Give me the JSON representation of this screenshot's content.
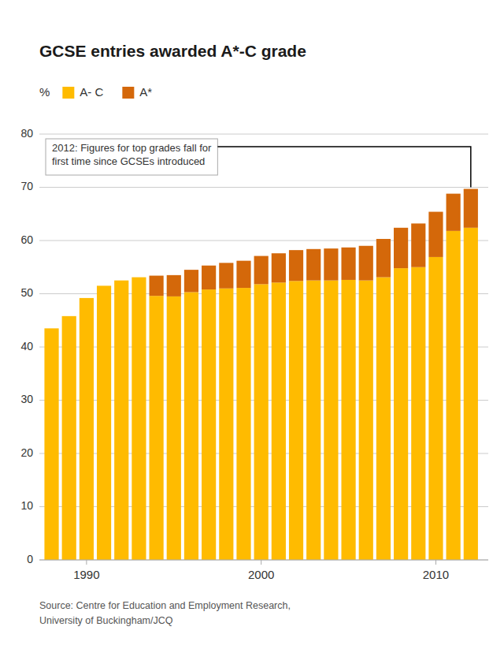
{
  "chart_data": {
    "type": "bar",
    "stacked": true,
    "title": "GCSE entries awarded A*-C grade",
    "y_label": "%",
    "annotations": [
      "2012: Figures for top grades fall for",
      "first time since GCSEs introduced"
    ],
    "source": [
      "Source: Centre for Education and Employment Research,",
      "University of Buckingham/JCQ"
    ],
    "x": [
      1988,
      1989,
      1990,
      1991,
      1992,
      1993,
      1994,
      1995,
      1996,
      1997,
      1998,
      1999,
      2000,
      2001,
      2002,
      2003,
      2004,
      2005,
      2006,
      2007,
      2008,
      2009,
      2010,
      2011,
      2012
    ],
    "series": [
      {
        "name": "A- C",
        "color": "#FFBB00",
        "values": [
          43.5,
          45.8,
          49.2,
          51.5,
          52.5,
          53.1,
          49.6,
          49.5,
          50.3,
          50.8,
          51.0,
          51.1,
          51.8,
          52.1,
          52.4,
          52.5,
          52.5,
          52.6,
          52.5,
          53.1,
          54.8,
          55.0,
          56.9,
          61.8,
          62.4
        ]
      },
      {
        "name": "A*",
        "color": "#D4680A",
        "values": [
          0,
          0,
          0,
          0,
          0,
          0,
          3.8,
          4.0,
          4.2,
          4.5,
          4.8,
          5.1,
          5.3,
          5.5,
          5.8,
          5.9,
          6.0,
          6.1,
          6.5,
          7.2,
          7.6,
          8.2,
          8.5,
          7.0,
          7.3
        ]
      }
    ],
    "xlim": [
      1987.3,
      2013.0
    ],
    "xticks": [
      1990,
      2000,
      2010
    ],
    "ylim": [
      0,
      80
    ],
    "yticks": [
      0,
      10,
      20,
      30,
      40,
      50,
      60,
      70,
      80
    ],
    "grid": true,
    "legend": "top"
  }
}
